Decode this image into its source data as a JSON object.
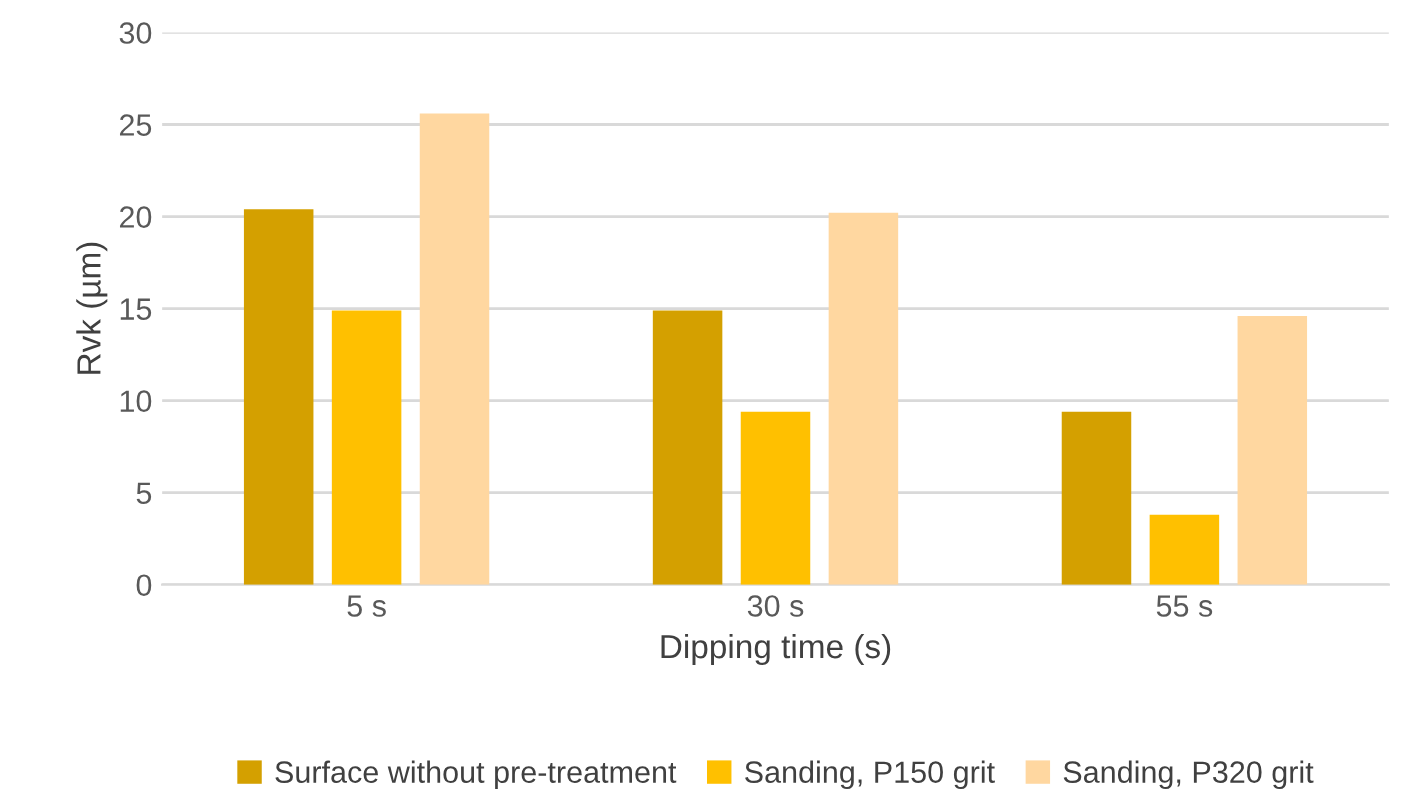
{
  "chart_data": {
    "type": "bar",
    "xlabel": "Dipping time (s)",
    "ylabel": "Rvk (µm)",
    "categories": [
      "5 s",
      "30 s",
      "55 s"
    ],
    "series": [
      {
        "name": "Surface without pre-treatment",
        "color": "#d4a000",
        "values": [
          20.4,
          14.9,
          9.4
        ]
      },
      {
        "name": "Sanding, P150 grit",
        "color": "#ffc000",
        "values": [
          14.9,
          9.4,
          3.8
        ]
      },
      {
        "name": "Sanding, P320 grit",
        "color": "#ffd7a0",
        "values": [
          25.6,
          20.2,
          14.6
        ]
      }
    ],
    "ylim": [
      0,
      30
    ],
    "yticks": [
      0,
      5,
      10,
      15,
      20,
      25,
      30
    ],
    "grid": "y",
    "legend": "bottom"
  }
}
